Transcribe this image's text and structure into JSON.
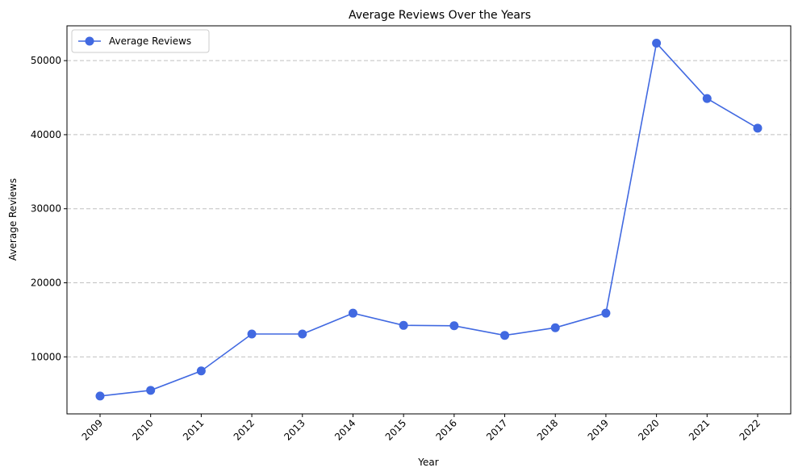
{
  "chart_data": {
    "type": "line",
    "title": "Average Reviews Over the Years",
    "xlabel": "Year",
    "ylabel": "Average Reviews",
    "categories": [
      "2009",
      "2010",
      "2011",
      "2012",
      "2013",
      "2014",
      "2015",
      "2016",
      "2017",
      "2018",
      "2019",
      "2020",
      "2021",
      "2022"
    ],
    "series": [
      {
        "name": "Average Reviews",
        "color": "#4169e1",
        "values": [
          4710,
          5479,
          8100,
          13090,
          13090,
          15898,
          14250,
          14200,
          12900,
          13930,
          15898,
          52363,
          44880,
          40885
        ]
      }
    ],
    "ylim": [
      2300,
      54700
    ],
    "yticks": [
      10000,
      20000,
      30000,
      40000,
      50000
    ],
    "y_grid": true,
    "x_grid": false,
    "legend_position": "top-left"
  }
}
